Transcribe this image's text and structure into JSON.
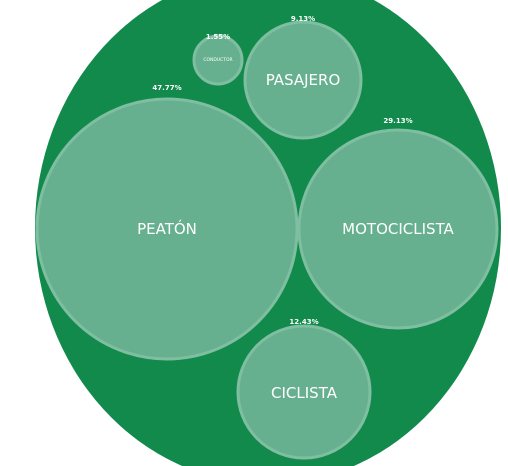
{
  "colors": {
    "outer_fill": "#118a4c",
    "bubble_fill": "#66b08f",
    "bubble_stroke": "#7fbea1",
    "text": "#ffffff"
  },
  "chart_data": {
    "type": "bubble-pack",
    "title": "",
    "series": [
      {
        "name": "PEATÓN",
        "value": 47.77,
        "percent_label": "47.77%"
      },
      {
        "name": "MOTOCICLISTA",
        "value": 29.13,
        "percent_label": "29.13%"
      },
      {
        "name": "CICLISTA",
        "value": 12.43,
        "percent_label": "12.43%"
      },
      {
        "name": "PASAJERO",
        "value": 9.13,
        "percent_label": "9.13%"
      },
      {
        "name": "CONDUCTOR",
        "value": 1.55,
        "percent_label": "1.55%"
      }
    ]
  }
}
